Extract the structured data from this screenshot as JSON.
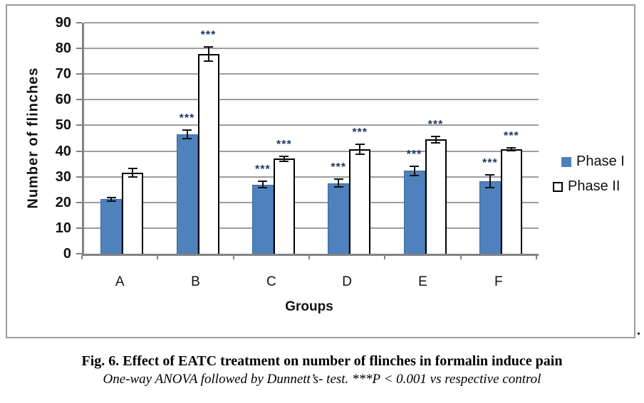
{
  "figure": {
    "caption_title": "Fig. 6. Effect of EATC treatment on number of flinches in formalin induce pain",
    "caption_subtitle": "One-way ANOVA followed by Dunnett’s- test. ***P < 0.001 vs respective control",
    "trailing_period": "."
  },
  "chart_data": {
    "type": "bar",
    "title": "",
    "xlabel": "Groups",
    "ylabel": "Number of flinches",
    "categories": [
      "A",
      "B",
      "C",
      "D",
      "E",
      "F"
    ],
    "series": [
      {
        "name": "Phase I",
        "color": "#4F81BD",
        "values": [
          21.2,
          46.5,
          27.0,
          27.5,
          32.3,
          28.2
        ],
        "errors": [
          1.0,
          2.0,
          1.5,
          1.8,
          2.0,
          2.8
        ],
        "significance": [
          "",
          "***",
          "***",
          "***",
          "***",
          "***"
        ]
      },
      {
        "name": "Phase II",
        "color": "#FFFFFF",
        "values": [
          31.5,
          77.8,
          37.0,
          40.8,
          44.5,
          40.7
        ],
        "errors": [
          2.0,
          3.0,
          1.2,
          2.2,
          1.6,
          0.8
        ],
        "significance": [
          "",
          "***",
          "***",
          "***",
          "***",
          "***"
        ]
      }
    ],
    "ylim": [
      0,
      90
    ],
    "ytick_step": 10,
    "grid": true,
    "legend_position": "right",
    "error_bars": true,
    "significance_note": "***P < 0.001 vs respective control"
  },
  "colors": {
    "phase1_blue": "#4F81BD",
    "phase2_white": "#FFFFFF",
    "gridline_gray": "#9D9D9D",
    "axis_gray": "#828282",
    "stars_navy": "#1F3864",
    "border_gray": "#9B9B9B"
  }
}
